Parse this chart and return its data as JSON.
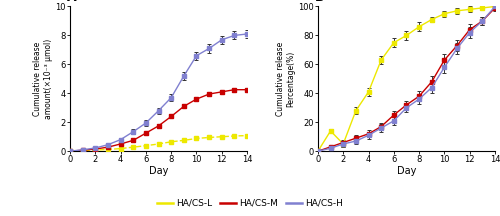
{
  "days": [
    0,
    1,
    2,
    3,
    4,
    5,
    6,
    7,
    8,
    9,
    10,
    11,
    12,
    13,
    14
  ],
  "A_L_mean": [
    0,
    0.04,
    0.08,
    0.12,
    0.18,
    0.28,
    0.38,
    0.5,
    0.65,
    0.75,
    0.88,
    0.95,
    1.0,
    1.05,
    1.08
  ],
  "A_L_err": [
    0,
    0.02,
    0.03,
    0.03,
    0.03,
    0.03,
    0.04,
    0.04,
    0.04,
    0.04,
    0.05,
    0.05,
    0.05,
    0.05,
    0.05
  ],
  "A_M_mean": [
    0,
    0.07,
    0.15,
    0.28,
    0.5,
    0.75,
    1.25,
    1.75,
    2.4,
    3.1,
    3.6,
    3.95,
    4.1,
    4.25,
    4.25
  ],
  "A_M_err": [
    0,
    0.04,
    0.05,
    0.07,
    0.08,
    0.1,
    0.1,
    0.12,
    0.14,
    0.14,
    0.14,
    0.14,
    0.14,
    0.14,
    0.14
  ],
  "A_H_mean": [
    0,
    0.1,
    0.22,
    0.45,
    0.8,
    1.35,
    1.95,
    2.8,
    3.7,
    5.2,
    6.6,
    7.1,
    7.7,
    8.0,
    8.1
  ],
  "A_H_err": [
    0,
    0.06,
    0.08,
    0.1,
    0.12,
    0.15,
    0.18,
    0.2,
    0.25,
    0.28,
    0.28,
    0.28,
    0.28,
    0.28,
    0.28
  ],
  "B_L_mean": [
    0,
    14,
    5,
    28,
    41,
    63,
    75,
    80,
    86,
    91,
    95,
    97,
    98,
    99,
    100
  ],
  "B_L_err": [
    0,
    1.5,
    2,
    2.5,
    3,
    3,
    3,
    3,
    3,
    2,
    2,
    2,
    2,
    1,
    1
  ],
  "B_M_mean": [
    0,
    3,
    6,
    9,
    12,
    17,
    25,
    32,
    38,
    48,
    63,
    73,
    84,
    90,
    99
  ],
  "B_M_err": [
    0,
    1.5,
    2,
    2,
    2.5,
    2.5,
    3,
    3,
    3.5,
    4,
    4,
    4,
    4,
    3,
    2
  ],
  "B_H_mean": [
    0,
    2,
    5,
    7,
    11,
    16,
    21,
    30,
    36,
    44,
    58,
    71,
    82,
    90,
    100
  ],
  "B_H_err": [
    0,
    1.5,
    2,
    2,
    2.5,
    2.5,
    3,
    3,
    3.5,
    4,
    4,
    4,
    4,
    3,
    2
  ],
  "color_L": "#ede800",
  "color_M": "#c80000",
  "color_H": "#8080d0",
  "color_err": "#333333",
  "label_L": "HA/CS-L",
  "label_M": "HA/CS-M",
  "label_H": "HA/CS-H",
  "title_A": "A",
  "title_B": "B",
  "ylabel_A": "Cumulative release\namount(×10⁻³ μmol)",
  "ylabel_B": "Cumulative release\nPercentage(%)",
  "xlabel": "Day",
  "xlim": [
    0,
    14
  ],
  "ylim_A": [
    0,
    10
  ],
  "ylim_B": [
    0,
    100
  ],
  "yticks_A": [
    0,
    2,
    4,
    6,
    8,
    10
  ],
  "yticks_B": [
    0,
    20,
    40,
    60,
    80,
    100
  ],
  "xticks": [
    0,
    2,
    4,
    6,
    8,
    10,
    12,
    14
  ],
  "legend_labels": [
    "HA/CS-L",
    "HA/CS-M",
    "HA/CS-H"
  ],
  "legend_colors": [
    "#ede800",
    "#c80000",
    "#8080d0"
  ]
}
